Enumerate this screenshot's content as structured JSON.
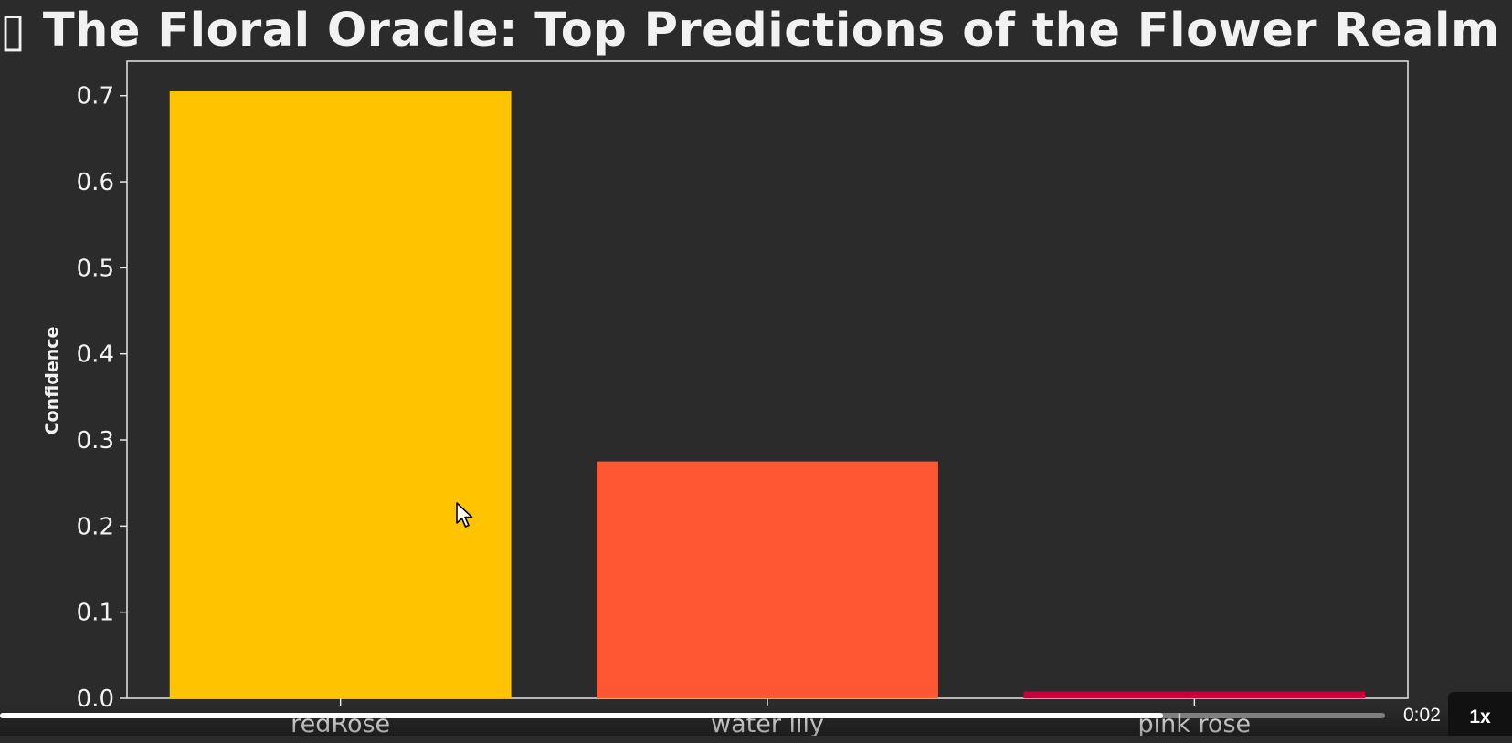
{
  "chart_data": {
    "type": "bar",
    "title": "▯ The Floral Oracle: Top Predictions of the Flower Realm ▯",
    "xlabel": "",
    "ylabel": "Confidence",
    "categories": [
      "redRose",
      "water lily",
      "pink rose"
    ],
    "values": [
      0.705,
      0.275,
      0.008
    ],
    "colors": [
      "#FFC300",
      "#FF5733",
      "#C70039"
    ],
    "ylim": [
      0,
      0.74
    ],
    "yticks": [
      0.0,
      0.1,
      0.2,
      0.3,
      0.4,
      0.5,
      0.6,
      0.7
    ],
    "grid": false,
    "background": "#2b2b2b",
    "text_color": "#f2f2f2"
  },
  "player": {
    "time": "0:02",
    "speed": "1x",
    "progress": 0.84
  },
  "cursor_icon": "pointer-arrow-icon"
}
